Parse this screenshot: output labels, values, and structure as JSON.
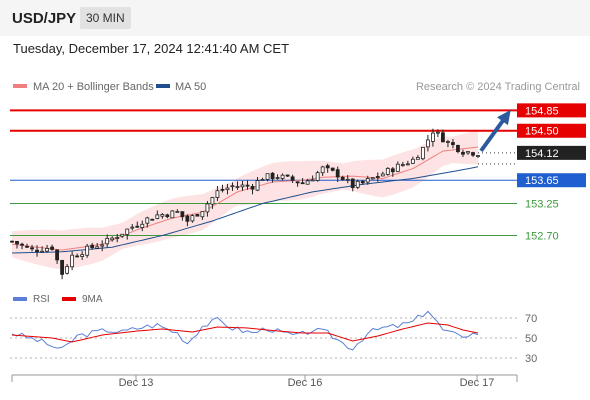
{
  "header": {
    "pair": "USD/JPY",
    "timeframe": "30 MIN",
    "datetime": "Tuesday, December 17, 2024 12:41:40 AM CET"
  },
  "colors": {
    "ma20": "#f08080",
    "ma50": "#1f4f8f",
    "resistance": "#e60000",
    "pivot": "#1f5fcf",
    "support": "#3c9a3c",
    "current": "#222222",
    "band": "#fde3e3",
    "rsi": "#5b7fd6",
    "rsi_ma": "#e60000"
  },
  "chart_data": [
    {
      "type": "candlestick",
      "legend": [
        {
          "name": "MA 20 + Bollinger Bands",
          "color": "#f08080"
        },
        {
          "name": "MA 50",
          "color": "#1f4f8f"
        }
      ],
      "copyright": "Research © 2024 Trading Central",
      "x_ticks": [
        "Dec 13",
        "Dec 16",
        "Dec 17"
      ],
      "levels": [
        {
          "value": 154.85,
          "label": "154.85",
          "kind": "resistance"
        },
        {
          "value": 154.5,
          "label": "154.50",
          "kind": "resistance"
        },
        {
          "value": 154.12,
          "label": "154.12",
          "kind": "current"
        },
        {
          "value": 153.65,
          "label": "153.65",
          "kind": "pivot"
        },
        {
          "value": 153.25,
          "label": "153.25",
          "kind": "support"
        },
        {
          "value": 152.7,
          "label": "152.70",
          "kind": "support"
        }
      ],
      "ylim": [
        151.85,
        155.2
      ],
      "projection": {
        "from": 154.12,
        "to": 154.85,
        "direction": "up"
      },
      "close_path": [
        [
          0,
          152.6
        ],
        [
          4,
          152.45
        ],
        [
          8,
          152.5
        ],
        [
          10,
          152.05
        ],
        [
          12,
          152.35
        ],
        [
          16,
          152.5
        ],
        [
          19,
          152.6
        ],
        [
          22,
          152.75
        ],
        [
          26,
          152.95
        ],
        [
          29,
          153.05
        ],
        [
          33,
          153.1
        ],
        [
          35,
          152.95
        ],
        [
          38,
          153.15
        ],
        [
          41,
          153.45
        ],
        [
          44,
          153.55
        ],
        [
          48,
          153.55
        ],
        [
          50,
          153.7
        ],
        [
          53,
          153.72
        ],
        [
          56,
          153.65
        ],
        [
          58,
          153.6
        ],
        [
          60,
          153.7
        ],
        [
          62,
          153.85
        ],
        [
          65,
          153.75
        ],
        [
          68,
          153.55
        ],
        [
          70,
          153.6
        ],
        [
          73,
          153.72
        ],
        [
          76,
          153.85
        ],
        [
          80,
          154.0
        ],
        [
          82,
          154.2
        ],
        [
          84,
          154.5
        ],
        [
          87,
          154.3
        ],
        [
          90,
          154.15
        ],
        [
          93,
          154.12
        ]
      ],
      "ma20_path": [
        [
          0,
          152.55
        ],
        [
          10,
          152.45
        ],
        [
          18,
          152.55
        ],
        [
          25,
          152.8
        ],
        [
          32,
          153.0
        ],
        [
          38,
          153.1
        ],
        [
          45,
          153.45
        ],
        [
          52,
          153.62
        ],
        [
          58,
          153.65
        ],
        [
          62,
          153.7
        ],
        [
          68,
          153.72
        ],
        [
          74,
          153.68
        ],
        [
          80,
          153.85
        ],
        [
          86,
          154.15
        ],
        [
          93,
          154.22
        ]
      ],
      "ma50_path": [
        [
          0,
          152.4
        ],
        [
          10,
          152.42
        ],
        [
          20,
          152.5
        ],
        [
          30,
          152.7
        ],
        [
          40,
          152.95
        ],
        [
          50,
          153.25
        ],
        [
          60,
          153.45
        ],
        [
          70,
          153.58
        ],
        [
          80,
          153.68
        ],
        [
          88,
          153.8
        ],
        [
          93,
          153.88
        ]
      ],
      "band_width": 0.28,
      "candle_count": 94
    },
    {
      "type": "line",
      "legend": [
        {
          "name": "RSI",
          "color": "#5b7fd6"
        },
        {
          "name": "9MA",
          "color": "#e60000"
        }
      ],
      "y_ticks": [
        "70",
        "50",
        "30"
      ],
      "ylim": [
        20,
        80
      ],
      "rsi_path": [
        [
          0,
          55
        ],
        [
          5,
          48
        ],
        [
          8,
          42
        ],
        [
          10,
          38
        ],
        [
          13,
          52
        ],
        [
          16,
          55
        ],
        [
          19,
          58
        ],
        [
          22,
          56
        ],
        [
          26,
          61
        ],
        [
          29,
          63
        ],
        [
          33,
          55
        ],
        [
          35,
          45
        ],
        [
          38,
          62
        ],
        [
          41,
          68
        ],
        [
          44,
          60
        ],
        [
          48,
          55
        ],
        [
          51,
          60
        ],
        [
          54,
          55
        ],
        [
          57,
          52
        ],
        [
          60,
          58
        ],
        [
          63,
          55
        ],
        [
          66,
          45
        ],
        [
          68,
          40
        ],
        [
          71,
          55
        ],
        [
          74,
          60
        ],
        [
          77,
          62
        ],
        [
          80,
          66
        ],
        [
          83,
          78
        ],
        [
          86,
          58
        ],
        [
          89,
          52
        ],
        [
          93,
          55
        ]
      ],
      "ma_path": [
        [
          0,
          53
        ],
        [
          8,
          50
        ],
        [
          12,
          46
        ],
        [
          18,
          53
        ],
        [
          25,
          57
        ],
        [
          30,
          59
        ],
        [
          36,
          56
        ],
        [
          41,
          61
        ],
        [
          47,
          60
        ],
        [
          53,
          57
        ],
        [
          58,
          55
        ],
        [
          63,
          55
        ],
        [
          68,
          47
        ],
        [
          73,
          52
        ],
        [
          78,
          59
        ],
        [
          83,
          65
        ],
        [
          87,
          63
        ],
        [
          90,
          58
        ],
        [
          93,
          55
        ]
      ]
    }
  ]
}
